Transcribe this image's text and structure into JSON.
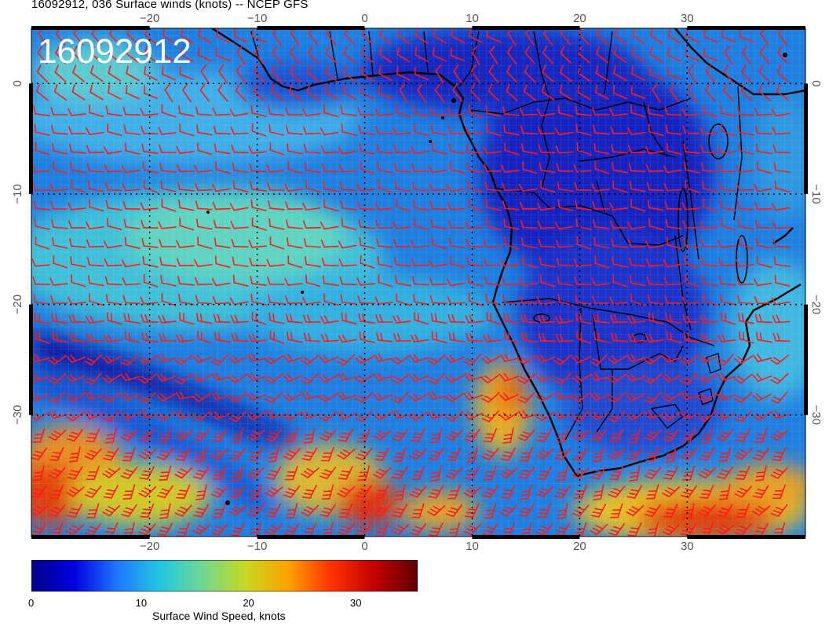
{
  "header": {
    "title": "16092912, 036 Surface winds (knots) -- NCEP GFS",
    "stamp": "16092912"
  },
  "map": {
    "region": "South Atlantic and southern Africa",
    "lon_range": [
      -31,
      41
    ],
    "lat_range": [
      5,
      -41
    ],
    "lon_ticks": [
      "−20",
      "−10",
      "0",
      "10",
      "20",
      "30"
    ],
    "lat_ticks": [
      "0",
      "−10",
      "−20",
      "−30"
    ],
    "grid": "dotted every 10 degrees",
    "barb_color": "#ff0000",
    "land_outline_color": "#000000"
  },
  "colorbar": {
    "label": "Surface Wind Speed, knots",
    "ticks": [
      "0",
      "10",
      "20",
      "30"
    ],
    "range": [
      0,
      36
    ],
    "colors": [
      "#00008b",
      "#0000e0",
      "#1e78ff",
      "#20c8e0",
      "#70d890",
      "#c8d820",
      "#ffa000",
      "#ff3000",
      "#c00000",
      "#600000"
    ]
  }
}
